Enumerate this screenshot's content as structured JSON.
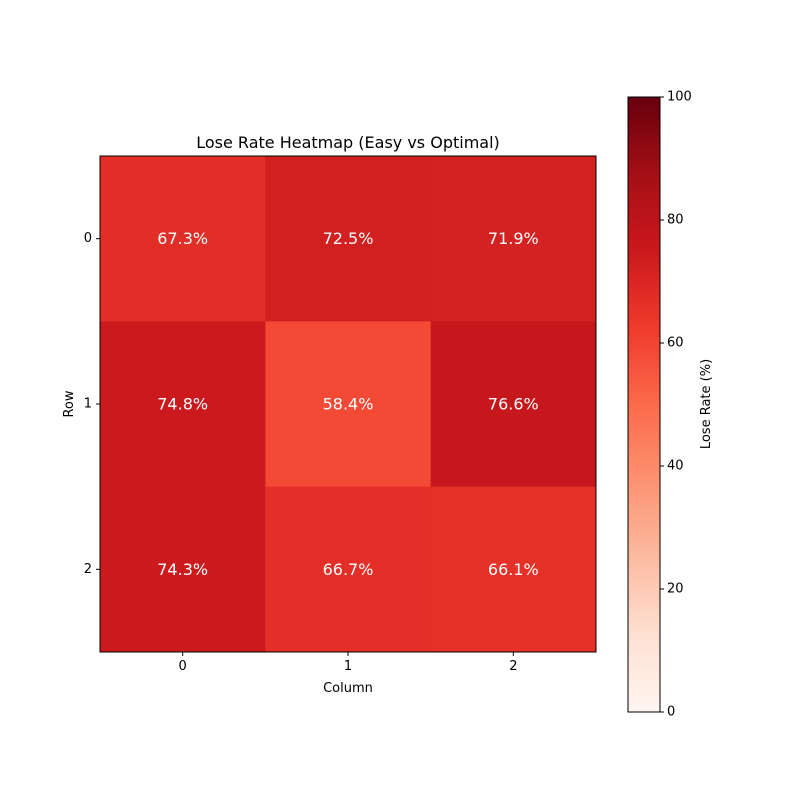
{
  "chart_data": {
    "type": "heatmap",
    "title": "Lose Rate Heatmap (Easy vs Optimal)",
    "xlabel": "Column",
    "ylabel": "Row",
    "x_categories": [
      "0",
      "1",
      "2"
    ],
    "y_categories": [
      "0",
      "1",
      "2"
    ],
    "values": [
      [
        67.3,
        72.5,
        71.9
      ],
      [
        74.8,
        58.4,
        76.6
      ],
      [
        74.3,
        66.7,
        66.1
      ]
    ],
    "cell_labels": [
      [
        "67.3%",
        "72.5%",
        "71.9%"
      ],
      [
        "74.8%",
        "58.4%",
        "76.6%"
      ],
      [
        "74.3%",
        "66.7%",
        "66.1%"
      ]
    ],
    "colorbar": {
      "label": "Lose Rate (%)",
      "range": [
        0,
        100
      ],
      "ticks": [
        "0",
        "20",
        "40",
        "60",
        "80",
        "100"
      ]
    },
    "colormap": "Reds",
    "colors": {
      "cell_text": "#ffffff",
      "axis": "#000000"
    }
  }
}
